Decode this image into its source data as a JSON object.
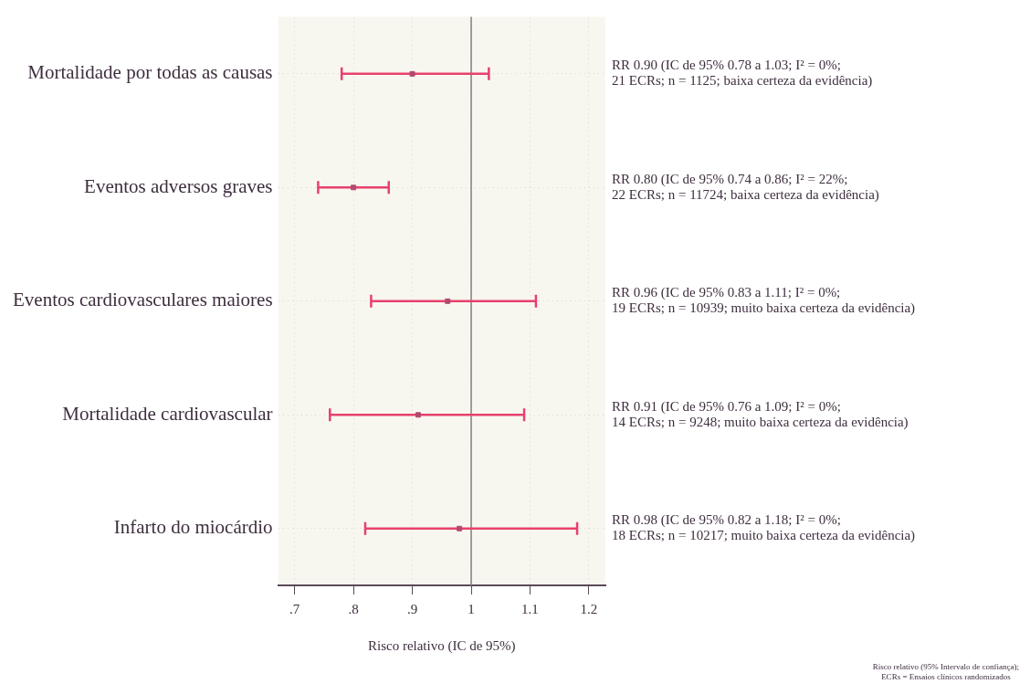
{
  "chart_data": {
    "type": "scatter",
    "orientation": "horizontal",
    "categories": [
      "Mortalidade por todas as causas",
      "Eventos adversos graves",
      "Eventos cardiovasculares maiores",
      "Mortalidade cardiovascular",
      "Infarto do miocárdio"
    ],
    "series": [
      {
        "color": "#b04a6e",
        "values": [
          0.9,
          0.8,
          0.96,
          0.91,
          0.98
        ],
        "errors": [
          [
            0.78,
            1.03
          ],
          [
            0.74,
            0.86
          ],
          [
            0.83,
            1.11
          ],
          [
            0.76,
            1.09
          ],
          [
            0.82,
            1.18
          ]
        ]
      }
    ],
    "xlim": [
      0.672,
      1.228
    ],
    "xticks": [
      {
        "value": 0.7,
        "label": ".7"
      },
      {
        "value": 0.8,
        "label": ".8"
      },
      {
        "value": 0.9,
        "label": ".9"
      },
      1,
      1.1,
      1.2
    ],
    "xlabel": "Risco relativo (IC de 95%)",
    "ref_lines": [
      {
        "axis": "x",
        "value": 1,
        "color": "#808080"
      }
    ],
    "grid": true,
    "legend": false,
    "marker": "square",
    "annotations": [
      "RR 0.90 (IC de 95% 0.78 a 1.03; I² = 0%;\n21 ECRs; n = 1125; baixa certeza da evidência)",
      "RR 0.80 (IC de 95% 0.74 a 0.86; I² = 22%;\n22 ECRs; n = 11724; baixa certeza da evidência)",
      "RR 0.96 (IC de 95% 0.83 a 1.11; I² = 0%;\n19 ECRs; n = 10939; muito baixa certeza da evidência)",
      "RR 0.91 (IC de 95% 0.76 a 1.09; I² = 0%;\n14 ECRs; n = 9248; muito baixa certeza da evidência)",
      "RR 0.98 (IC de 95% 0.82 a 1.18; I² = 0%;\n18 ECRs; n = 10217; muito baixa certeza da evidência)",
      "Risco relativo (95% Intervalo de confiança);\nECRs = Ensaios clínicos randomizados"
    ]
  }
}
